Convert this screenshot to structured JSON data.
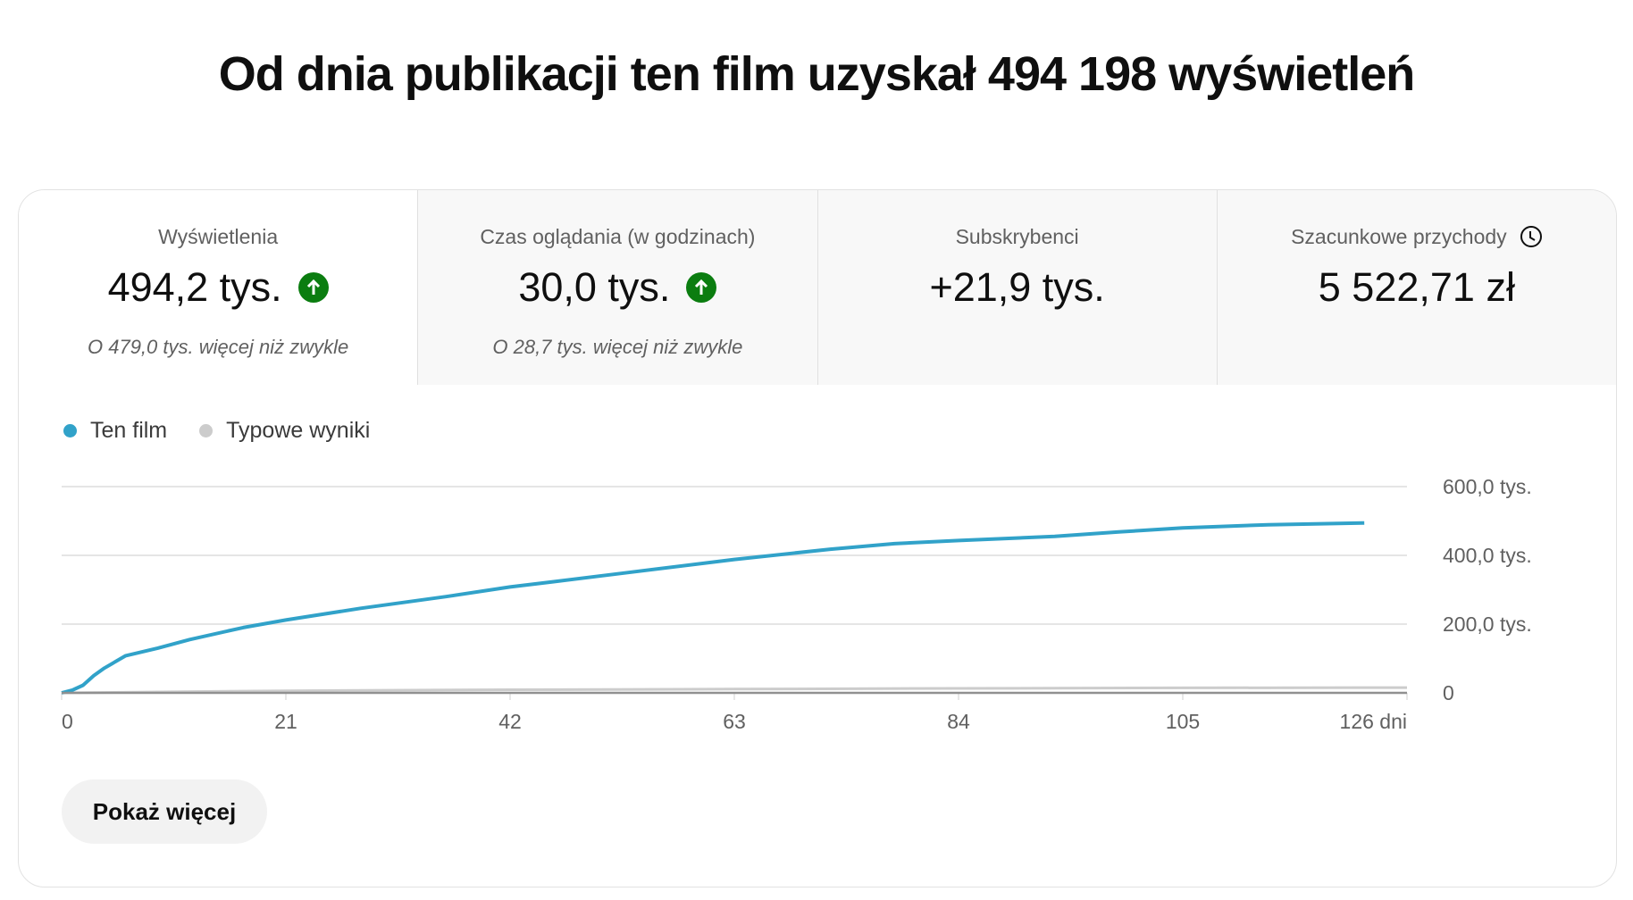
{
  "header": {
    "title": "Od dnia publikacji ten film uzyskał 494 198 wyświetleń"
  },
  "tiles": [
    {
      "label": "Wyświetlenia",
      "value": "494,2 tys.",
      "trend": "up",
      "sub": "O 479,0 tys. więcej niż zwykle"
    },
    {
      "label": "Czas oglądania (w godzinach)",
      "value": "30,0 tys.",
      "trend": "up",
      "sub": "O 28,7 tys. więcej niż zwykle"
    },
    {
      "label": "Subskrybenci",
      "value": "+21,9 tys."
    },
    {
      "label": "Szacunkowe przychody",
      "value": "5 522,71 zł",
      "icon": "clock-icon"
    }
  ],
  "colors": {
    "accent": "#31a2c9",
    "typical": "#cccccc",
    "trend_up": "#0b7d10"
  },
  "show_more_label": "Pokaż więcej",
  "chart_data": {
    "type": "line",
    "legend": [
      "Ten film",
      "Typowe wyniki"
    ],
    "legend_placement": "top-left",
    "xlim": [
      0,
      126
    ],
    "ylim": [
      0,
      600000
    ],
    "x_ticks": [
      0,
      21,
      42,
      63,
      84,
      105,
      126
    ],
    "x_tick_labels": [
      "0",
      "21",
      "42",
      "63",
      "84",
      "105",
      "126 dni"
    ],
    "y_ticks": [
      0,
      200000,
      400000,
      600000
    ],
    "y_tick_labels": [
      "0",
      "200,0 tys.",
      "400,0 tys.",
      "600,0 tys."
    ],
    "grid": true,
    "series": [
      {
        "name": "Ten film",
        "x": [
          0,
          1,
          2,
          3,
          4,
          6,
          9,
          12,
          17,
          21,
          28,
          36,
          42,
          46,
          53,
          63,
          72,
          78,
          84,
          93,
          99,
          105,
          113,
          122
        ],
        "y": [
          0,
          8000,
          22000,
          50000,
          72000,
          108000,
          130000,
          155000,
          190000,
          212000,
          246000,
          280000,
          308000,
          323000,
          350000,
          388000,
          418000,
          434000,
          443000,
          455000,
          468000,
          480000,
          489000,
          494198
        ]
      },
      {
        "name": "Typowe wyniki",
        "x": [
          0,
          21,
          42,
          63,
          84,
          105,
          126
        ],
        "y": [
          0,
          6000,
          9000,
          11000,
          13000,
          14500,
          15200
        ]
      }
    ]
  }
}
